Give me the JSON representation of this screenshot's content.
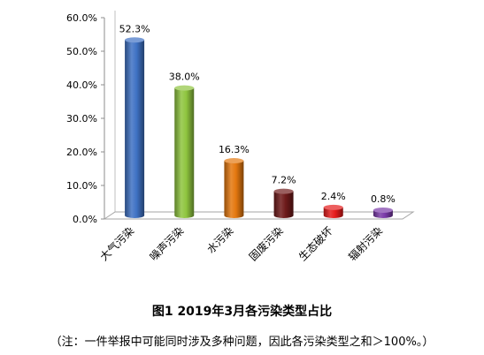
{
  "chart_data": {
    "type": "bar",
    "title": "图1 2019年3月各污染类型占比",
    "note": "（注：一件举报中可能同时涉及多种问题，因此各污染类型之和＞100%。）",
    "categories": [
      "大气污染",
      "噪声污染",
      "水污染",
      "固废污染",
      "生态破坏",
      "辐射污染"
    ],
    "values": [
      52.3,
      38.0,
      16.3,
      7.2,
      2.4,
      0.8
    ],
    "value_labels": [
      "52.3%",
      "38.0%",
      "16.3%",
      "7.2%",
      "2.4%",
      "0.8%"
    ],
    "ylim": [
      0,
      60
    ],
    "yticks": [
      "0.0%",
      "10.0%",
      "20.0%",
      "30.0%",
      "40.0%",
      "50.0%",
      "60.0%"
    ],
    "xlabel": "",
    "ylabel": "",
    "grid": false,
    "legend": "none",
    "colors": [
      "#3f72c4",
      "#8fc53f",
      "#e4780f",
      "#6e1a1a",
      "#e51b1b",
      "#7a3aa8"
    ]
  }
}
